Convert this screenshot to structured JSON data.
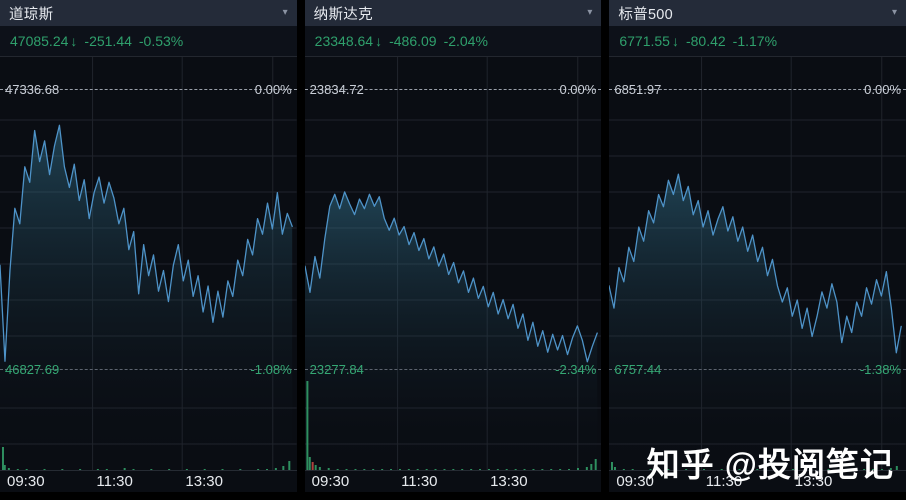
{
  "watermark": {
    "text": "知乎 @投阅笔记"
  },
  "colors": {
    "quote_green": "#2fa06c",
    "line_blue": "#4e93c8",
    "fill_teal": "#3f8fb0",
    "volume_green": "#2e8f5f",
    "volume_red": "#b0413e",
    "header_bg": "#242b39",
    "chart_bg": "#0a0d13",
    "grid": "#20242c"
  },
  "panels": [
    {
      "title": "道琼斯",
      "dropdown_icon": "▾",
      "quote": {
        "price": "47085.24",
        "arrow": "↓",
        "change": "-251.44",
        "change_pct": "-0.53%"
      },
      "ref_line": {
        "value": "47336.68",
        "pct": "0.00%"
      },
      "low_line": {
        "value": "46827.69",
        "pct": "-1.08%"
      },
      "time_labels": [
        "09:30",
        "11:30",
        "13:30"
      ],
      "chart_data": {
        "type": "line",
        "x_ticks": [
          "09:30",
          "11:30",
          "13:30"
        ],
        "x_session": [
          "09:30",
          "16:00"
        ],
        "y_top": {
          "value": 47336.68,
          "pct": 0.0
        },
        "y_bottom": {
          "value": 46827.69,
          "pct": -1.08
        },
        "last_pct": -0.53,
        "series_pct": [
          -0.68,
          -1.05,
          -0.7,
          -0.46,
          -0.52,
          -0.3,
          -0.36,
          -0.16,
          -0.28,
          -0.2,
          -0.33,
          -0.22,
          -0.14,
          -0.3,
          -0.38,
          -0.29,
          -0.43,
          -0.35,
          -0.5,
          -0.4,
          -0.34,
          -0.44,
          -0.36,
          -0.42,
          -0.52,
          -0.46,
          -0.62,
          -0.55,
          -0.79,
          -0.6,
          -0.72,
          -0.64,
          -0.78,
          -0.7,
          -0.82,
          -0.68,
          -0.6,
          -0.74,
          -0.66,
          -0.8,
          -0.72,
          -0.86,
          -0.76,
          -0.9,
          -0.78,
          -0.88,
          -0.74,
          -0.8,
          -0.66,
          -0.72,
          -0.58,
          -0.64,
          -0.5,
          -0.56,
          -0.44,
          -0.54,
          -0.4,
          -0.56,
          -0.48,
          -0.53
        ],
        "volume": [
          [
            0.01,
            24
          ],
          [
            0.016,
            6
          ],
          [
            0.03,
            3
          ],
          [
            0.06,
            2
          ],
          [
            0.09,
            2
          ],
          [
            0.12,
            1
          ],
          [
            0.15,
            2
          ],
          [
            0.18,
            1
          ],
          [
            0.21,
            2
          ],
          [
            0.24,
            1
          ],
          [
            0.27,
            2
          ],
          [
            0.3,
            1
          ],
          [
            0.33,
            2
          ],
          [
            0.36,
            2
          ],
          [
            0.39,
            1
          ],
          [
            0.42,
            3
          ],
          [
            0.45,
            2
          ],
          [
            0.48,
            1
          ],
          [
            0.51,
            2
          ],
          [
            0.54,
            1
          ],
          [
            0.57,
            2
          ],
          [
            0.6,
            1
          ],
          [
            0.63,
            2
          ],
          [
            0.66,
            1
          ],
          [
            0.69,
            2
          ],
          [
            0.72,
            1
          ],
          [
            0.75,
            2
          ],
          [
            0.78,
            1
          ],
          [
            0.81,
            2
          ],
          [
            0.84,
            1
          ],
          [
            0.87,
            2
          ],
          [
            0.9,
            2
          ],
          [
            0.93,
            3
          ],
          [
            0.955,
            5
          ],
          [
            0.975,
            10
          ]
        ]
      }
    },
    {
      "title": "纳斯达克",
      "dropdown_icon": "▾",
      "quote": {
        "price": "23348.64",
        "arrow": "↓",
        "change": "-486.09",
        "change_pct": "-2.04%"
      },
      "ref_line": {
        "value": "23834.72",
        "pct": "0.00%"
      },
      "low_line": {
        "value": "23277.84",
        "pct": "-2.34%"
      },
      "time_labels": [
        "09:30",
        "11:30",
        "13:30"
      ],
      "chart_data": {
        "type": "line",
        "x_ticks": [
          "09:30",
          "11:30",
          "13:30"
        ],
        "x_session": [
          "09:30",
          "16:00"
        ],
        "y_top": {
          "value": 23834.72,
          "pct": 0.0
        },
        "y_bottom": {
          "value": 23277.84,
          "pct": -2.34
        },
        "last_pct": -2.04,
        "series_pct": [
          -1.48,
          -1.7,
          -1.4,
          -1.58,
          -1.25,
          -0.98,
          -0.88,
          -1.0,
          -0.86,
          -0.96,
          -1.05,
          -0.92,
          -1.0,
          -0.88,
          -0.98,
          -0.9,
          -1.08,
          -1.18,
          -1.08,
          -1.22,
          -1.15,
          -1.3,
          -1.2,
          -1.35,
          -1.25,
          -1.42,
          -1.32,
          -1.48,
          -1.38,
          -1.55,
          -1.45,
          -1.62,
          -1.52,
          -1.7,
          -1.58,
          -1.75,
          -1.65,
          -1.82,
          -1.7,
          -1.88,
          -1.76,
          -1.92,
          -1.8,
          -2.0,
          -1.88,
          -2.1,
          -1.95,
          -2.15,
          -2.02,
          -2.2,
          -2.05,
          -2.18,
          -2.06,
          -2.22,
          -2.08,
          -1.98,
          -2.1,
          -2.28,
          -2.15,
          -2.04
        ],
        "volume": [
          [
            0.008,
            90
          ],
          [
            0.016,
            14
          ],
          [
            0.026,
            9,
            "r"
          ],
          [
            0.036,
            6
          ],
          [
            0.05,
            4
          ],
          [
            0.08,
            3
          ],
          [
            0.11,
            2
          ],
          [
            0.14,
            2
          ],
          [
            0.17,
            2
          ],
          [
            0.2,
            2
          ],
          [
            0.23,
            2
          ],
          [
            0.26,
            2
          ],
          [
            0.29,
            2
          ],
          [
            0.32,
            2
          ],
          [
            0.35,
            2
          ],
          [
            0.38,
            2
          ],
          [
            0.41,
            2
          ],
          [
            0.44,
            2
          ],
          [
            0.47,
            2
          ],
          [
            0.5,
            2
          ],
          [
            0.53,
            2
          ],
          [
            0.56,
            2
          ],
          [
            0.59,
            2
          ],
          [
            0.62,
            2
          ],
          [
            0.65,
            2
          ],
          [
            0.68,
            2
          ],
          [
            0.71,
            2
          ],
          [
            0.74,
            2
          ],
          [
            0.77,
            2
          ],
          [
            0.8,
            2
          ],
          [
            0.83,
            2
          ],
          [
            0.86,
            2
          ],
          [
            0.89,
            2
          ],
          [
            0.92,
            3
          ],
          [
            0.95,
            4
          ],
          [
            0.965,
            7
          ],
          [
            0.98,
            12
          ]
        ]
      }
    },
    {
      "title": "标普500",
      "dropdown_icon": "▾",
      "quote": {
        "price": "6771.55",
        "arrow": "↓",
        "change": "-80.42",
        "change_pct": "-1.17%"
      },
      "ref_line": {
        "value": "6851.97",
        "pct": "0.00%"
      },
      "low_line": {
        "value": "6757.44",
        "pct": "-1.38%"
      },
      "time_labels": [
        "09:30",
        "11:30",
        "13:30"
      ],
      "chart_data": {
        "type": "line",
        "x_ticks": [
          "09:30",
          "11:30",
          "13:30"
        ],
        "x_session": [
          "09:30",
          "16:00"
        ],
        "y_top": {
          "value": 6851.97,
          "pct": 0.0
        },
        "y_bottom": {
          "value": 6757.44,
          "pct": -1.38
        },
        "last_pct": -1.17,
        "series_pct": [
          -0.97,
          -1.08,
          -0.88,
          -0.95,
          -0.78,
          -0.85,
          -0.68,
          -0.75,
          -0.6,
          -0.66,
          -0.52,
          -0.58,
          -0.45,
          -0.52,
          -0.42,
          -0.55,
          -0.48,
          -0.62,
          -0.55,
          -0.68,
          -0.6,
          -0.72,
          -0.64,
          -0.58,
          -0.7,
          -0.63,
          -0.75,
          -0.68,
          -0.8,
          -0.72,
          -0.85,
          -0.78,
          -0.92,
          -0.84,
          -0.97,
          -1.05,
          -0.98,
          -1.12,
          -1.04,
          -1.18,
          -1.08,
          -1.22,
          -1.12,
          -1.0,
          -1.08,
          -0.96,
          -1.05,
          -1.25,
          -1.12,
          -1.2,
          -1.05,
          -1.12,
          -0.98,
          -1.06,
          -0.94,
          -1.02,
          -0.9,
          -1.08,
          -1.3,
          -1.17
        ],
        "volume": [
          [
            0.01,
            9
          ],
          [
            0.02,
            4
          ],
          [
            0.05,
            2
          ],
          [
            0.08,
            2
          ],
          [
            0.11,
            1
          ],
          [
            0.14,
            2
          ],
          [
            0.17,
            1
          ],
          [
            0.2,
            2
          ],
          [
            0.23,
            1
          ],
          [
            0.26,
            2
          ],
          [
            0.29,
            1
          ],
          [
            0.32,
            2
          ],
          [
            0.35,
            1
          ],
          [
            0.38,
            2
          ],
          [
            0.41,
            1
          ],
          [
            0.44,
            2
          ],
          [
            0.47,
            1
          ],
          [
            0.5,
            2
          ],
          [
            0.53,
            1
          ],
          [
            0.56,
            2
          ],
          [
            0.59,
            1
          ],
          [
            0.62,
            2
          ],
          [
            0.65,
            1
          ],
          [
            0.68,
            2
          ],
          [
            0.71,
            1
          ],
          [
            0.74,
            2
          ],
          [
            0.77,
            1
          ],
          [
            0.8,
            2
          ],
          [
            0.83,
            1
          ],
          [
            0.86,
            2
          ],
          [
            0.89,
            2
          ],
          [
            0.92,
            2
          ],
          [
            0.95,
            3
          ],
          [
            0.97,
            5
          ]
        ]
      }
    }
  ]
}
